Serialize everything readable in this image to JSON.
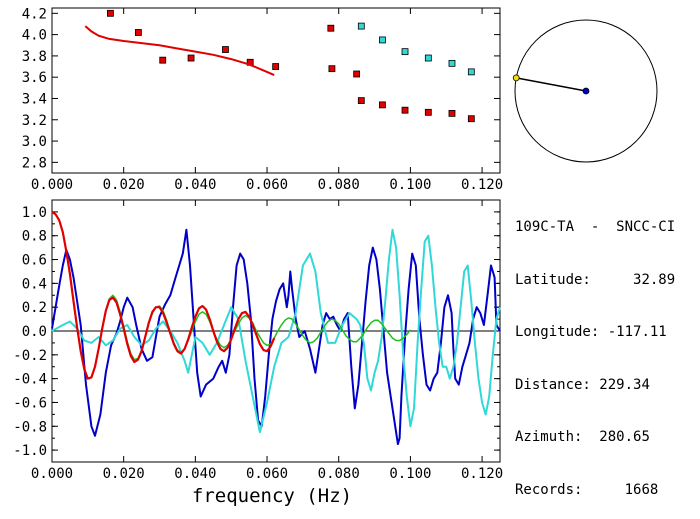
{
  "info": {
    "station": "109C-TA  -  SNCC-CI",
    "latitude_label": "Latitude:",
    "latitude": "32.89",
    "longitude_label": "Longitude:",
    "longitude": "-117.11",
    "distance_label": "Distance:",
    "distance": "229.34",
    "azimuth_label": "Azimuth:",
    "azimuth": "280.65",
    "records_label": "Records:",
    "records": "1668"
  },
  "colors": {
    "red": "#e00000",
    "cyan": "#30d8d8",
    "blue": "#0000c8",
    "green": "#20c020",
    "black": "#000000",
    "yellow": "#f0e000"
  },
  "chart_data": [
    {
      "type": "scatter",
      "panel": "top",
      "xlim": [
        0.0,
        0.125
      ],
      "ylim": [
        2.7,
        4.25
      ],
      "xticks": [
        "0.000",
        "0.020",
        "0.040",
        "0.060",
        "0.080",
        "0.100",
        "0.120"
      ],
      "yticks": [
        "2.8",
        "3.0",
        "3.2",
        "3.4",
        "3.6",
        "3.8",
        "4.0",
        "4.2"
      ],
      "series": [
        {
          "color": "red",
          "marker": "square",
          "x": [
            0.0163,
            0.0241,
            0.0309,
            0.0388,
            0.0484,
            0.0553,
            0.0624,
            0.0778,
            0.0781,
            0.085,
            0.0863,
            0.0922,
            0.0985,
            0.105,
            0.1116,
            0.117
          ],
          "y": [
            4.2,
            4.02,
            3.76,
            3.78,
            3.86,
            3.74,
            3.7,
            4.06,
            3.68,
            3.63,
            3.38,
            3.34,
            3.29,
            3.27,
            3.26,
            3.21
          ]
        },
        {
          "color": "cyan",
          "marker": "square",
          "x": [
            0.0863,
            0.0922,
            0.0985,
            0.105,
            0.1116,
            0.117
          ],
          "y": [
            4.08,
            3.95,
            3.84,
            3.78,
            3.73,
            3.65
          ]
        },
        {
          "color": "red",
          "marker": "line",
          "x": [
            0.0093,
            0.011,
            0.013,
            0.016,
            0.02,
            0.025,
            0.03,
            0.035,
            0.04,
            0.045,
            0.05,
            0.055,
            0.06,
            0.062
          ],
          "y": [
            4.08,
            4.03,
            3.99,
            3.96,
            3.94,
            3.92,
            3.9,
            3.87,
            3.84,
            3.81,
            3.77,
            3.72,
            3.65,
            3.62
          ]
        }
      ]
    },
    {
      "type": "line",
      "panel": "bottom",
      "xlabel": "frequency (Hz)",
      "xlim": [
        0.0,
        0.125
      ],
      "ylim": [
        -1.1,
        1.1
      ],
      "xticks": [
        "0.000",
        "0.020",
        "0.040",
        "0.060",
        "0.080",
        "0.100",
        "0.120"
      ],
      "yticks": [
        "1.0",
        "0.8",
        "0.6",
        "0.4",
        "0.2",
        "0.0",
        "-0.2",
        "-0.4",
        "-0.6",
        "-0.8",
        "-1.0"
      ],
      "series": [
        {
          "color": "blue",
          "x": [
            0.0,
            0.002,
            0.003,
            0.004,
            0.005,
            0.006,
            0.008,
            0.0095,
            0.011,
            0.012,
            0.0135,
            0.015,
            0.0165,
            0.018,
            0.019,
            0.02,
            0.021,
            0.0225,
            0.0235,
            0.025,
            0.0265,
            0.028,
            0.029,
            0.03,
            0.0315,
            0.033,
            0.0345,
            0.0355,
            0.0365,
            0.0375,
            0.0385,
            0.0395,
            0.0405,
            0.0415,
            0.043,
            0.045,
            0.0465,
            0.0475,
            0.0485,
            0.0495,
            0.0505,
            0.0515,
            0.0525,
            0.0535,
            0.0545,
            0.0555,
            0.0565,
            0.0575,
            0.0585,
            0.0595,
            0.0605,
            0.0615,
            0.0625,
            0.0635,
            0.0645,
            0.0655,
            0.066,
            0.0665,
            0.067,
            0.068,
            0.069,
            0.0705,
            0.072,
            0.0735,
            0.0745,
            0.0755,
            0.0765,
            0.0775,
            0.0785,
            0.0795,
            0.0805,
            0.0815,
            0.0825,
            0.0835,
            0.0845,
            0.0855,
            0.0865,
            0.0875,
            0.0885,
            0.0895,
            0.0905,
            0.0915,
            0.0925,
            0.0935,
            0.0945,
            0.0955,
            0.0965,
            0.097,
            0.0975,
            0.0985,
            0.0995,
            0.1005,
            0.1015,
            0.1025,
            0.1035,
            0.1045,
            0.1055,
            0.1065,
            0.1075,
            0.1085,
            0.1095,
            0.1105,
            0.1115,
            0.112,
            0.1125,
            0.1135,
            0.1145,
            0.1155,
            0.1165,
            0.1175,
            0.1185,
            0.1195,
            0.1205,
            0.1215,
            0.1225,
            0.1235,
            0.124,
            0.125
          ],
          "y": [
            0.02,
            0.38,
            0.55,
            0.68,
            0.6,
            0.45,
            0.05,
            -0.45,
            -0.8,
            -0.88,
            -0.7,
            -0.35,
            -0.12,
            -0.02,
            0.08,
            0.2,
            0.28,
            0.2,
            0.05,
            -0.15,
            -0.25,
            -0.22,
            -0.05,
            0.12,
            0.22,
            0.3,
            0.45,
            0.55,
            0.65,
            0.85,
            0.55,
            0.1,
            -0.35,
            -0.55,
            -0.45,
            -0.4,
            -0.3,
            -0.25,
            -0.35,
            -0.2,
            0.2,
            0.55,
            0.65,
            0.6,
            0.4,
            0.1,
            -0.4,
            -0.75,
            -0.8,
            -0.55,
            -0.2,
            0.1,
            0.25,
            0.35,
            0.4,
            0.2,
            0.3,
            0.5,
            0.35,
            0.1,
            -0.05,
            0.0,
            -0.15,
            -0.35,
            -0.15,
            0.05,
            0.15,
            0.1,
            0.12,
            0.05,
            0.0,
            0.1,
            0.15,
            -0.3,
            -0.65,
            -0.45,
            -0.1,
            0.25,
            0.55,
            0.7,
            0.6,
            0.35,
            0.0,
            -0.35,
            -0.55,
            -0.75,
            -0.95,
            -0.9,
            -0.55,
            -0.05,
            0.35,
            0.65,
            0.55,
            0.1,
            -0.2,
            -0.45,
            -0.5,
            -0.4,
            -0.35,
            -0.1,
            0.2,
            0.3,
            0.15,
            -0.15,
            -0.4,
            -0.45,
            -0.3,
            -0.2,
            -0.1,
            0.1,
            0.2,
            0.15,
            0.05,
            0.3,
            0.55,
            0.45,
            0.05,
            0.0
          ],
          "type": "line"
        },
        {
          "color": "cyan",
          "x": [
            0.0,
            0.003,
            0.005,
            0.007,
            0.009,
            0.011,
            0.013,
            0.015,
            0.017,
            0.019,
            0.021,
            0.023,
            0.025,
            0.027,
            0.029,
            0.031,
            0.033,
            0.035,
            0.037,
            0.038,
            0.039,
            0.04,
            0.042,
            0.044,
            0.046,
            0.048,
            0.05,
            0.052,
            0.054,
            0.056,
            0.058,
            0.06,
            0.062,
            0.064,
            0.066,
            0.068,
            0.07,
            0.072,
            0.0735,
            0.075,
            0.077,
            0.079,
            0.081,
            0.083,
            0.085,
            0.086,
            0.087,
            0.088,
            0.089,
            0.09,
            0.091,
            0.092,
            0.093,
            0.094,
            0.095,
            0.096,
            0.097,
            0.098,
            0.099,
            0.1,
            0.101,
            0.102,
            0.103,
            0.104,
            0.105,
            0.106,
            0.107,
            0.108,
            0.109,
            0.11,
            0.111,
            0.112,
            0.113,
            0.114,
            0.115,
            0.116,
            0.117,
            0.118,
            0.119,
            0.12,
            0.121,
            0.122,
            0.123,
            0.124,
            0.125
          ],
          "y": [
            0.0,
            0.05,
            0.08,
            0.02,
            -0.08,
            -0.1,
            -0.05,
            -0.12,
            -0.08,
            0.02,
            0.05,
            -0.05,
            -0.12,
            -0.08,
            0.02,
            0.08,
            0.0,
            -0.1,
            -0.25,
            -0.35,
            -0.2,
            -0.05,
            -0.1,
            -0.2,
            -0.1,
            0.05,
            0.2,
            0.1,
            -0.25,
            -0.55,
            -0.85,
            -0.6,
            -0.3,
            -0.1,
            -0.05,
            0.15,
            0.55,
            0.65,
            0.5,
            0.15,
            -0.1,
            -0.1,
            0.05,
            0.15,
            0.1,
            0.05,
            -0.1,
            -0.4,
            -0.5,
            -0.35,
            -0.25,
            -0.05,
            0.25,
            0.6,
            0.85,
            0.7,
            0.3,
            -0.2,
            -0.55,
            -0.8,
            -0.65,
            -0.1,
            0.35,
            0.75,
            0.8,
            0.55,
            0.2,
            -0.1,
            -0.3,
            -0.3,
            -0.4,
            -0.3,
            -0.1,
            0.2,
            0.5,
            0.55,
            0.25,
            -0.1,
            -0.4,
            -0.6,
            -0.7,
            -0.55,
            -0.2,
            0.1,
            0.2
          ],
          "type": "line"
        },
        {
          "color": "green",
          "x": [
            0.0,
            0.001,
            0.002,
            0.003,
            0.004,
            0.005,
            0.006,
            0.007,
            0.008,
            0.009,
            0.01,
            0.011,
            0.012,
            0.013,
            0.014,
            0.015,
            0.016,
            0.017,
            0.018,
            0.019,
            0.02,
            0.021,
            0.022,
            0.023,
            0.024,
            0.025,
            0.026,
            0.027,
            0.028,
            0.029,
            0.03,
            0.031,
            0.032,
            0.033,
            0.034,
            0.035,
            0.036,
            0.037,
            0.038,
            0.039,
            0.04,
            0.041,
            0.042,
            0.043,
            0.044,
            0.045,
            0.046,
            0.047,
            0.048,
            0.049,
            0.05,
            0.051,
            0.052,
            0.053,
            0.054,
            0.055,
            0.056,
            0.057,
            0.058,
            0.059,
            0.06,
            0.061,
            0.062,
            0.063,
            0.064,
            0.065,
            0.066,
            0.067,
            0.068,
            0.069,
            0.07,
            0.071,
            0.072,
            0.073,
            0.074,
            0.075,
            0.076,
            0.077,
            0.078,
            0.079,
            0.08,
            0.081,
            0.082,
            0.083,
            0.084,
            0.085,
            0.086,
            0.087,
            0.088,
            0.089,
            0.09,
            0.091,
            0.092,
            0.093,
            0.094,
            0.095,
            0.096,
            0.097,
            0.098,
            0.099,
            0.1
          ],
          "y": [
            1.0,
            0.98,
            0.93,
            0.83,
            0.67,
            0.48,
            0.25,
            0.03,
            -0.17,
            -0.32,
            -0.4,
            -0.39,
            -0.3,
            -0.15,
            0.02,
            0.17,
            0.27,
            0.3,
            0.26,
            0.16,
            0.04,
            -0.09,
            -0.19,
            -0.24,
            -0.23,
            -0.16,
            -0.05,
            0.06,
            0.15,
            0.2,
            0.21,
            0.17,
            0.09,
            -0.01,
            -0.1,
            -0.16,
            -0.18,
            -0.15,
            -0.08,
            0.0,
            0.08,
            0.14,
            0.16,
            0.14,
            0.08,
            0.0,
            -0.07,
            -0.12,
            -0.14,
            -0.12,
            -0.07,
            0.0,
            0.06,
            0.11,
            0.13,
            0.11,
            0.07,
            0.0,
            -0.05,
            -0.1,
            -0.12,
            -0.11,
            -0.06,
            0.0,
            0.05,
            0.09,
            0.11,
            0.1,
            0.06,
            0.01,
            -0.04,
            -0.08,
            -0.1,
            -0.09,
            -0.06,
            -0.01,
            0.04,
            0.08,
            0.1,
            0.09,
            0.06,
            0.01,
            -0.04,
            -0.07,
            -0.09,
            -0.09,
            -0.06,
            -0.02,
            0.03,
            0.07,
            0.09,
            0.09,
            0.06,
            0.02,
            -0.02,
            -0.06,
            -0.08,
            -0.08,
            -0.06,
            -0.03,
            0.01
          ],
          "type": "line"
        },
        {
          "color": "red",
          "x": [
            0.0,
            0.001,
            0.002,
            0.003,
            0.004,
            0.005,
            0.006,
            0.007,
            0.008,
            0.009,
            0.01,
            0.011,
            0.012,
            0.013,
            0.014,
            0.015,
            0.016,
            0.017,
            0.018,
            0.019,
            0.02,
            0.021,
            0.022,
            0.023,
            0.024,
            0.025,
            0.026,
            0.027,
            0.028,
            0.029,
            0.03,
            0.031,
            0.032,
            0.033,
            0.034,
            0.035,
            0.036,
            0.037,
            0.038,
            0.039,
            0.04,
            0.041,
            0.042,
            0.043,
            0.044,
            0.045,
            0.046,
            0.047,
            0.048,
            0.049,
            0.05,
            0.051,
            0.052,
            0.053,
            0.054,
            0.055,
            0.056,
            0.057,
            0.058,
            0.059,
            0.06,
            0.061,
            0.062
          ],
          "y": [
            1.0,
            0.98,
            0.93,
            0.83,
            0.67,
            0.48,
            0.25,
            0.03,
            -0.17,
            -0.32,
            -0.4,
            -0.39,
            -0.3,
            -0.15,
            0.02,
            0.17,
            0.26,
            0.28,
            0.24,
            0.14,
            0.02,
            -0.11,
            -0.21,
            -0.26,
            -0.24,
            -0.17,
            -0.05,
            0.07,
            0.16,
            0.2,
            0.2,
            0.15,
            0.07,
            -0.02,
            -0.11,
            -0.17,
            -0.19,
            -0.15,
            -0.07,
            0.03,
            0.12,
            0.19,
            0.21,
            0.18,
            0.1,
            0.0,
            -0.09,
            -0.15,
            -0.17,
            -0.14,
            -0.07,
            0.02,
            0.1,
            0.15,
            0.16,
            0.12,
            0.05,
            -0.03,
            -0.11,
            -0.16,
            -0.17,
            -0.13,
            -0.06
          ],
          "type": "line"
        }
      ]
    }
  ],
  "azimuth_diagram": {
    "azimuth_deg": 280.65
  }
}
